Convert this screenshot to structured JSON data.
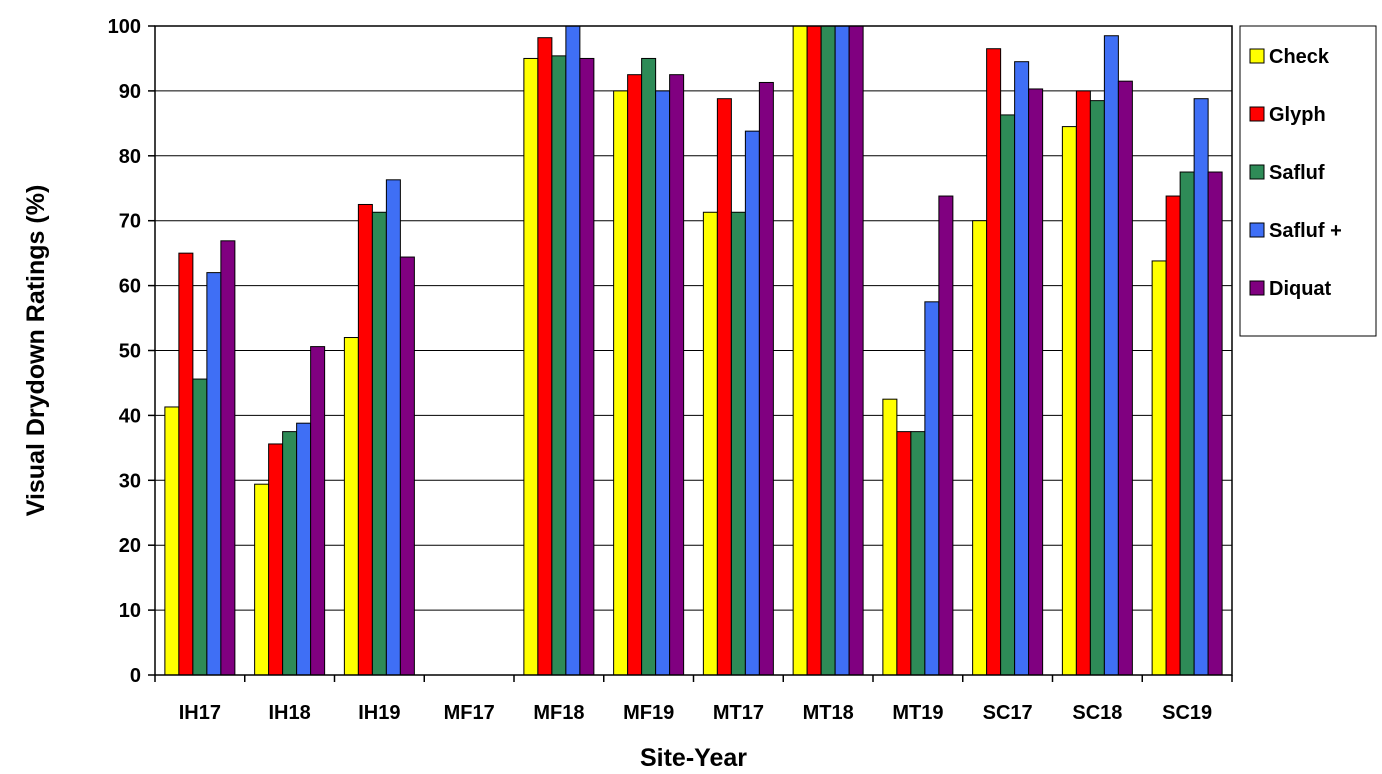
{
  "chart_data": {
    "type": "bar",
    "xlabel": "Site-Year",
    "ylabel": "Visual Drydown Ratings (%)",
    "ylim": [
      0,
      100
    ],
    "yticks": [
      0,
      10,
      20,
      30,
      40,
      50,
      60,
      70,
      80,
      90,
      100
    ],
    "grid": "horizontal",
    "legend_position": "right",
    "categories": [
      "IH17",
      "IH18",
      "IH19",
      "MF17",
      "MF18",
      "MF19",
      "MT17",
      "MT18",
      "MT19",
      "SC17",
      "SC18",
      "SC19"
    ],
    "series": [
      {
        "name": "Check",
        "color": "#ffff00",
        "values": [
          41.3,
          29.4,
          52.0,
          0,
          95.0,
          90.0,
          71.3,
          100,
          42.5,
          70.0,
          84.5,
          63.8
        ]
      },
      {
        "name": "Glyph",
        "color": "#ff0000",
        "values": [
          65.0,
          35.6,
          72.5,
          0,
          98.2,
          92.5,
          88.8,
          100,
          37.5,
          96.5,
          90.0,
          73.8
        ]
      },
      {
        "name": "Safluf",
        "color": "#2e8b57",
        "values": [
          45.6,
          37.5,
          71.3,
          0,
          95.4,
          95.0,
          71.3,
          100,
          37.5,
          86.3,
          88.5,
          77.5
        ]
      },
      {
        "name": "Safluf +",
        "color": "#3f6ff5",
        "values": [
          62.0,
          38.8,
          76.3,
          0,
          100,
          90.0,
          83.8,
          100,
          57.5,
          94.5,
          98.5,
          88.8
        ]
      },
      {
        "name": "Diquat",
        "color": "#800080",
        "values": [
          66.9,
          50.6,
          64.4,
          0,
          95.0,
          92.5,
          91.3,
          100,
          73.8,
          90.3,
          91.5,
          77.5
        ]
      }
    ]
  }
}
